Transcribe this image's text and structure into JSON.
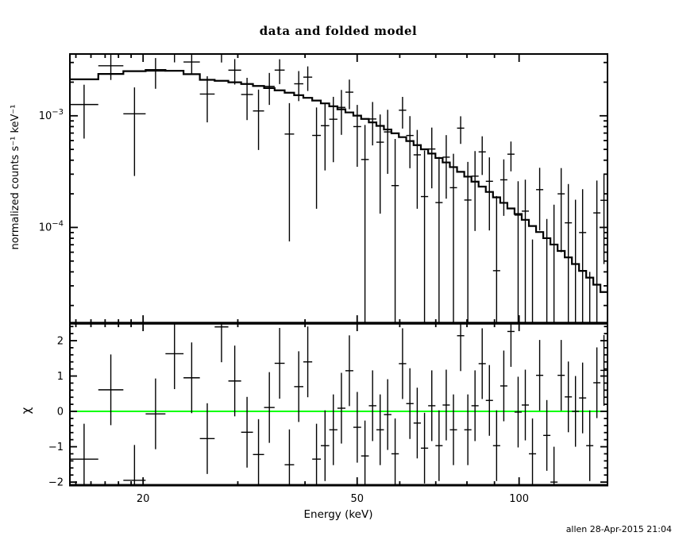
{
  "header": {
    "title": "data and folded model"
  },
  "footer": {
    "credit": "allen 28-Apr-2015 21:04"
  },
  "colors": {
    "foreground": "#000000",
    "background": "#ffffff",
    "model_line": "#000000",
    "data_points": "#000000",
    "residual_zero_line": "#00ff00"
  },
  "axes": {
    "x_label": "Energy (keV)",
    "y_label_top": "normalized counts s⁻¹ keV⁻¹",
    "y_label_bottom": "χ"
  },
  "chart_data": [
    {
      "type": "scatter",
      "title": "data and folded model",
      "subtitle": "spectrum with folded model (stepped histogram)",
      "xlabel": "Energy (keV)",
      "ylabel": "normalized counts s⁻¹ keV⁻¹",
      "xscale": "log",
      "yscale": "log",
      "xlim": [
        14.62,
        146.0
      ],
      "ylim": [
        1.388e-05,
        0.003575
      ],
      "grid": false,
      "legend": "none",
      "x_major_ticks": [
        {
          "value": 20,
          "label": "20"
        },
        {
          "value": 50,
          "label": "50"
        },
        {
          "value": 100,
          "label": "100"
        }
      ],
      "x_minor_ticks": [
        15,
        16,
        17,
        18,
        19,
        30,
        40,
        60,
        70,
        80,
        90
      ],
      "y_major_ticks": [
        {
          "value": 0.001,
          "base": "10",
          "exp": "−3"
        },
        {
          "value": 0.0001,
          "base": "10",
          "exp": "−4"
        }
      ],
      "bin_edges_kev": [
        14.62,
        16.51,
        18.38,
        20.22,
        22.01,
        23.78,
        25.5,
        27.17,
        28.81,
        30.43,
        32.01,
        33.57,
        35.12,
        36.66,
        38.18,
        39.71,
        41.25,
        42.8,
        44.37,
        45.95,
        47.55,
        49.19,
        50.86,
        52.56,
        54.29,
        56.07,
        57.9,
        59.77,
        61.69,
        63.66,
        65.68,
        67.76,
        69.9,
        72.09,
        74.35,
        76.68,
        79.08,
        81.55,
        84.09,
        86.72,
        89.43,
        92.24,
        95.11,
        98.07,
        101.13,
        104.29,
        107.54,
        110.9,
        114.35,
        117.92,
        121.59,
        125.37,
        129.26,
        133.27,
        137.4,
        141.65,
        146.0
      ],
      "model_counts": [
        0.00212,
        0.00237,
        0.00251,
        0.00257,
        0.00253,
        0.00236,
        0.0021,
        0.002056,
        0.001995,
        0.001926,
        0.00185,
        0.001771,
        0.001691,
        0.001609,
        0.001528,
        0.001448,
        0.001369,
        0.001291,
        0.001216,
        0.001143,
        0.001072,
        0.001003,
        0.000937,
        0.000873,
        0.000812,
        0.000754,
        0.000697,
        0.000644,
        0.000594,
        0.000546,
        0.000501,
        0.000459,
        0.000419,
        0.000382,
        0.000347,
        0.000315,
        0.000285,
        0.000257,
        0.000232,
        0.000208,
        0.000186,
        0.000166,
        0.000148,
        0.000132,
        0.000117,
        0.000103,
        9.1e-05,
        8.01e-05,
        7.03e-05,
        6.16e-05,
        5.39e-05,
        4.7e-05,
        4.08e-05,
        3.55e-05,
        3.07e-05,
        2.64e-05
      ],
      "data_counts": [
        0.001261,
        0.002804,
        0.001042,
        0.002516,
        0.003767,
        0.003033,
        0.001566,
        0.003678,
        0.002561,
        0.001551,
        0.001105,
        0.001835,
        0.002565,
        0.000686,
        0.001934,
        0.002218,
        0.000667,
        0.000815,
        0.000931,
        0.001189,
        0.001627,
        0.0008,
        0.000406,
        0.000936,
        0.00058,
        0.000717,
        0.000237,
        0.001122,
        0.000666,
        0.000447,
        0.000189,
        0.000504,
        0.000167,
        0.000426,
        0.000227,
        0.000775,
        0.000176,
        0.000288,
        0.000475,
        0.000259,
        4.1e-05,
        0.000267,
        0.000453,
        0.000129,
        0.00014,
        -4.8e-05,
        0.000218,
        -3e-06,
        1e-05,
        0.0002,
        0.00011,
        4.7e-05,
        9e-05,
        -9e-05,
        0.000135,
        0.000175
      ],
      "data_err": [
        0.000636,
        0.000711,
        0.000753,
        0.000771,
        0.000759,
        0.000708,
        0.000693,
        0.000678,
        0.000658,
        0.000636,
        0.000611,
        0.000584,
        0.000643,
        0.000611,
        0.000581,
        0.00055,
        0.00052,
        0.000491,
        0.000547,
        0.000514,
        0.000482,
        0.000451,
        0.000422,
        0.000393,
        0.000447,
        0.000415,
        0.000383,
        0.000354,
        0.000327,
        0.0003,
        0.0003,
        0.00028,
        0.00026,
        0.000245,
        0.00023,
        0.000215,
        0.00021,
        0.000195,
        0.00018,
        0.000165,
        0.00015,
        0.00014,
        0.000135,
        0.00013,
        0.000128,
        0.000126,
        0.000124,
        0.000122,
        0.00015,
        0.00014,
        0.000135,
        0.00013,
        0.00013,
        0.00013,
        0.000128,
        0.000128
      ]
    },
    {
      "type": "scatter",
      "subtitle": "fit residuals (chi)",
      "xlabel": "Energy (keV)",
      "ylabel": "χ",
      "xscale": "log",
      "yscale": "linear",
      "xlim": [
        14.62,
        146.0
      ],
      "ylim": [
        -2.088,
        2.494
      ],
      "grid": false,
      "y_major_ticks": [
        {
          "value": 2,
          "label": "2"
        },
        {
          "value": 1,
          "label": "1"
        },
        {
          "value": 0,
          "label": "0"
        },
        {
          "value": -1,
          "label": "−1"
        },
        {
          "value": -2,
          "label": "−2"
        }
      ],
      "y_minor_step": 0.2,
      "zero_line": {
        "value": 0,
        "color": "#00ff00"
      },
      "chi": [
        -1.35,
        0.61,
        -1.95,
        -0.07,
        1.63,
        0.95,
        -0.77,
        2.39,
        0.86,
        -0.59,
        -1.22,
        0.11,
        1.36,
        -1.51,
        0.7,
        1.4,
        -1.35,
        -0.97,
        -0.52,
        0.09,
        1.15,
        -0.45,
        -1.26,
        0.16,
        -0.52,
        -0.09,
        -1.2,
        1.35,
        0.22,
        -0.33,
        -1.04,
        0.16,
        -0.97,
        0.18,
        -0.52,
        2.14,
        -0.52,
        0.16,
        1.35,
        0.31,
        -0.97,
        0.72,
        2.26,
        -0.02,
        0.18,
        -1.2,
        1.02,
        -0.68,
        -2.0,
        1.02,
        0.41,
        0.0,
        0.38,
        -0.97,
        0.81,
        1.16
      ],
      "chi_err": 1.0
    }
  ]
}
